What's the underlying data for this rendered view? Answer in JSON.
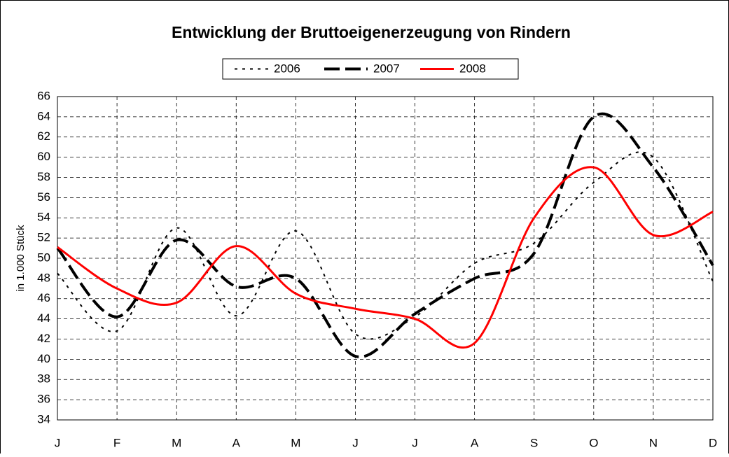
{
  "chart_data": {
    "type": "line",
    "title": "Entwicklung der Bruttoeigenerzeugung von Rindern",
    "ylabel": "in 1.000 Stück",
    "categories": [
      "J",
      "F",
      "M",
      "A",
      "M",
      "J",
      "J",
      "A",
      "S",
      "O",
      "N",
      "D"
    ],
    "series": [
      {
        "name": "2006",
        "color": "#000000",
        "linestyle": "dotted",
        "values": [
          48.5,
          42.8,
          53.0,
          44.3,
          52.7,
          42.5,
          44.2,
          49.5,
          51.5,
          57.5,
          60.0,
          47.7
        ]
      },
      {
        "name": "2007",
        "color": "#000000",
        "linestyle": "dashed",
        "values": [
          51.0,
          44.2,
          51.8,
          47.2,
          48.0,
          40.3,
          44.5,
          48.0,
          50.5,
          64.0,
          59.0,
          49.3
        ]
      },
      {
        "name": "2008",
        "color": "#ff0000",
        "linestyle": "solid",
        "values": [
          51.1,
          47.0,
          45.6,
          51.2,
          46.5,
          45.0,
          44.0,
          41.6,
          54.0,
          59.0,
          52.3,
          54.6
        ]
      }
    ],
    "ylim": [
      34,
      66
    ],
    "yticks": [
      34,
      36,
      38,
      40,
      42,
      44,
      46,
      48,
      50,
      52,
      54,
      56,
      58,
      60,
      62,
      64,
      66
    ],
    "grid": true,
    "legend": "top",
    "smooth": true
  }
}
